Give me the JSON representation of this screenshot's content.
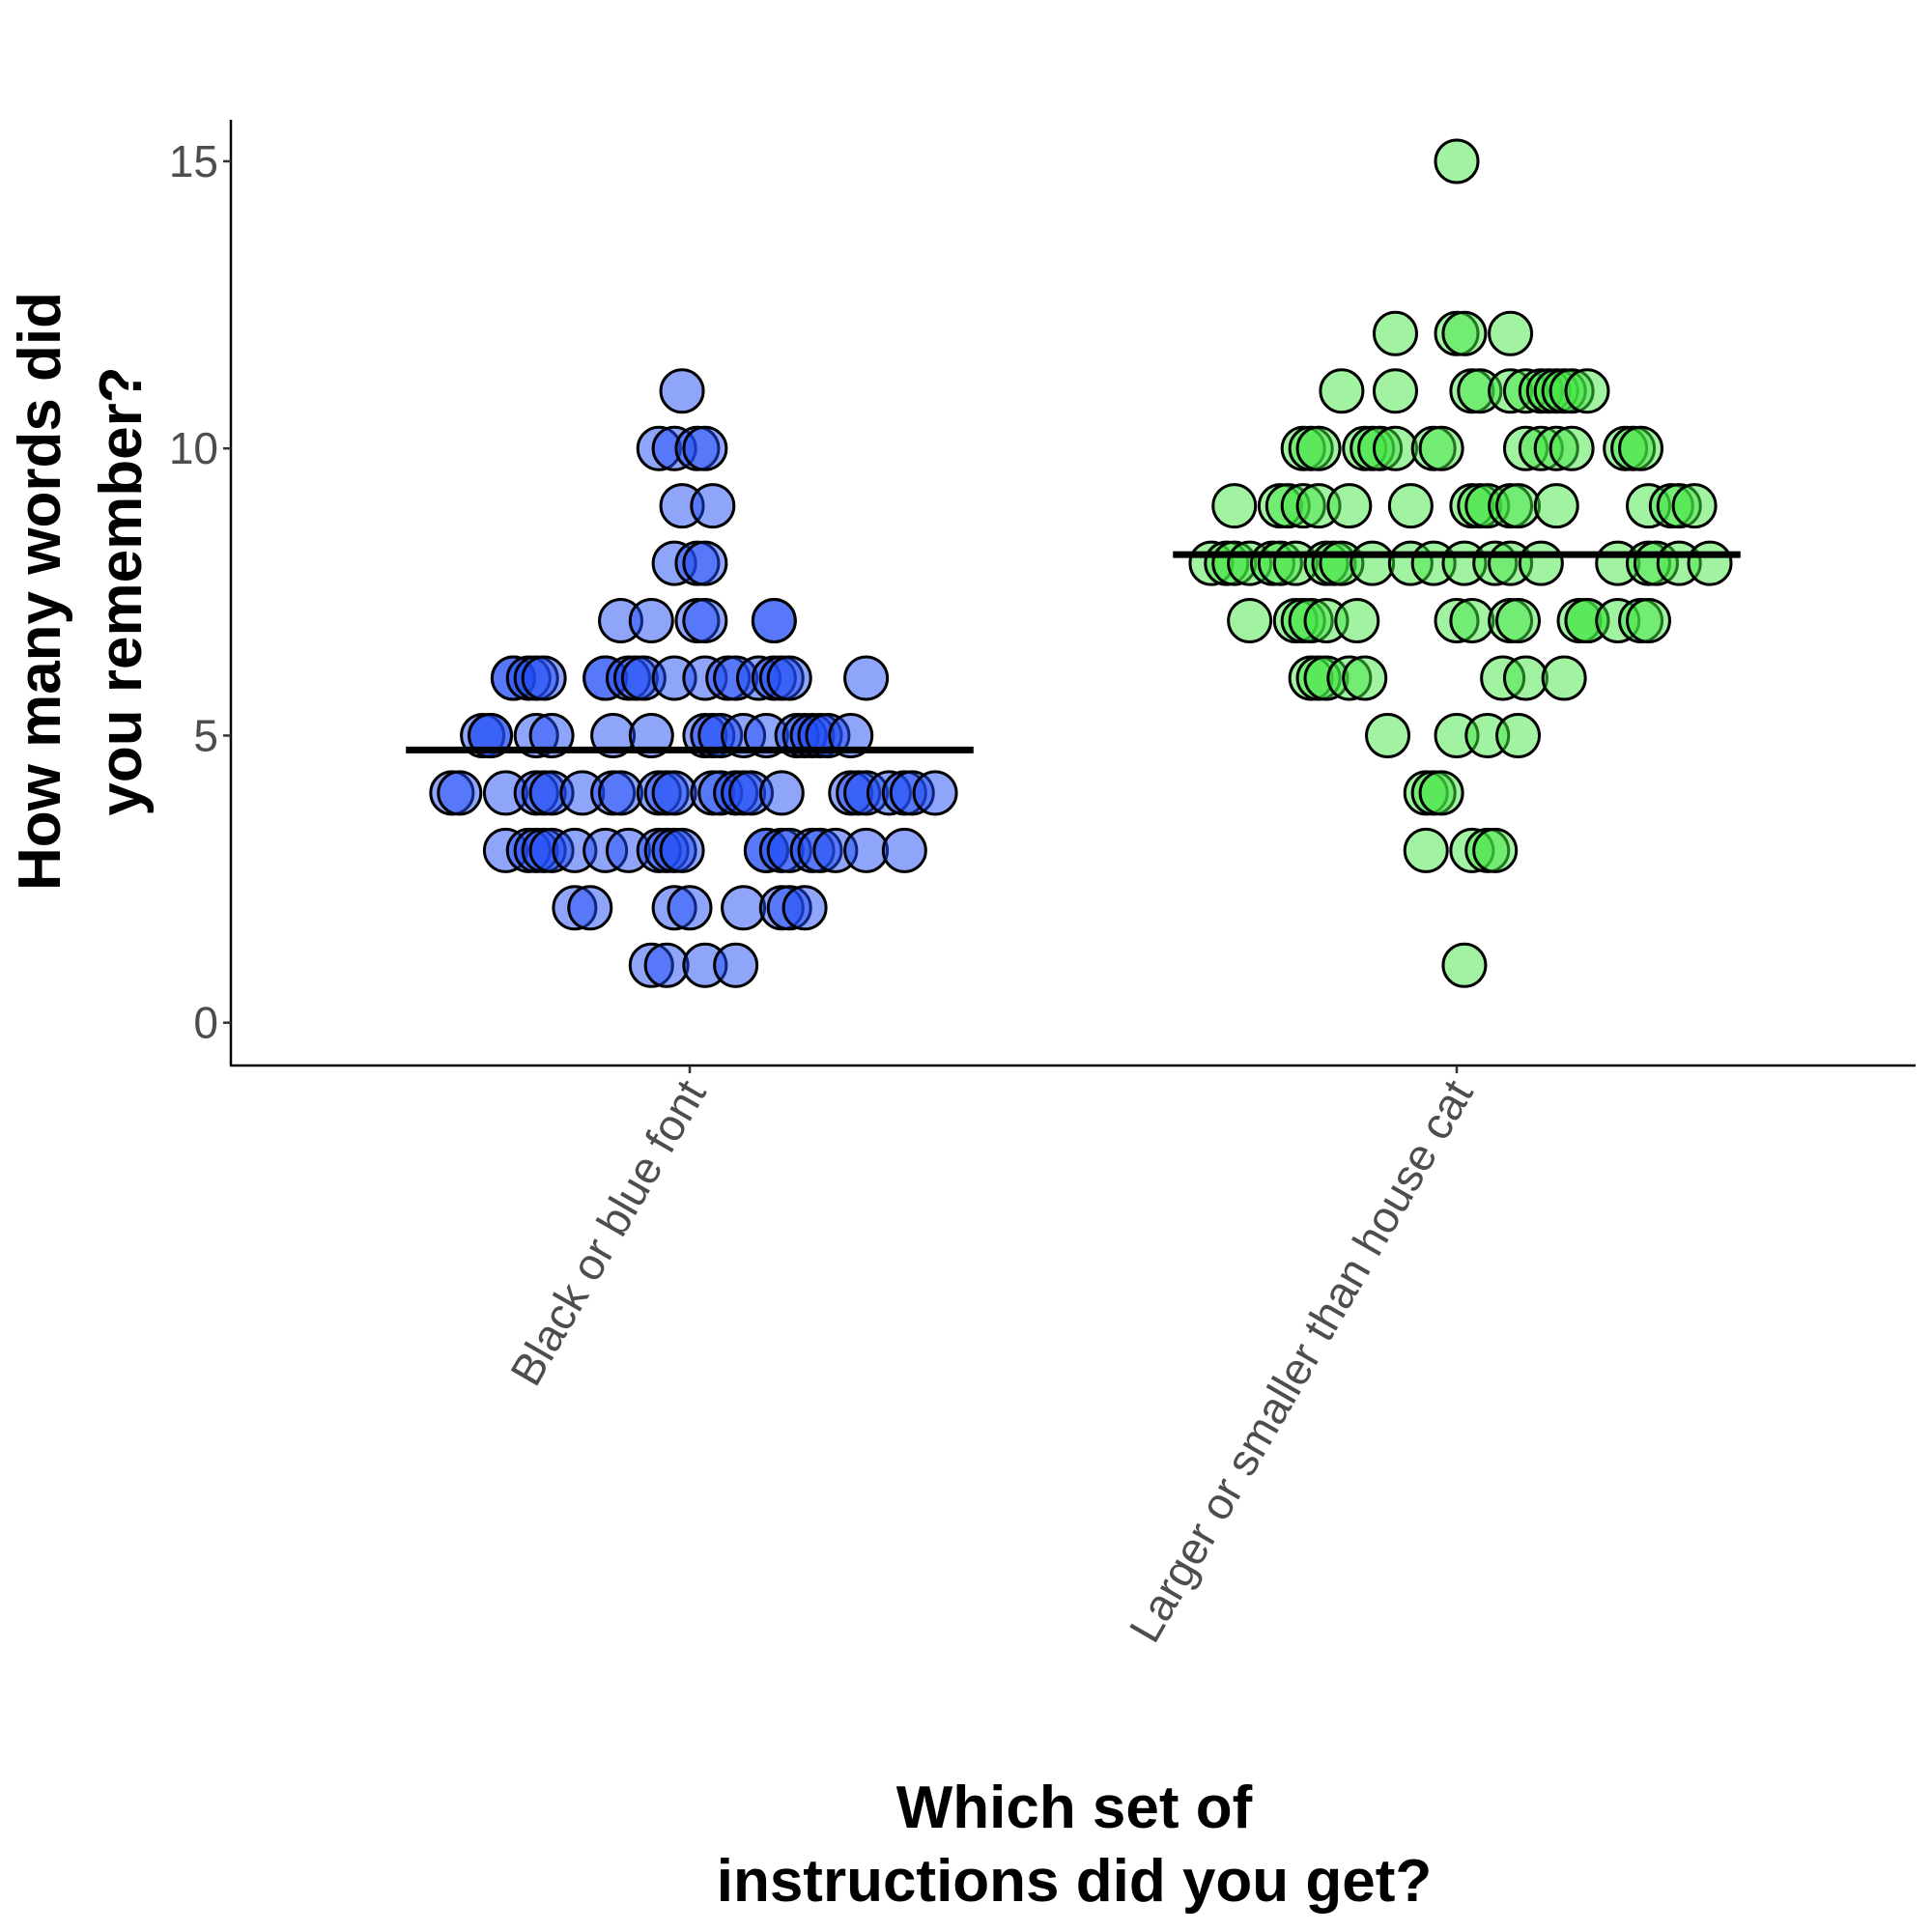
{
  "chart_data": {
    "type": "scatter",
    "subtype": "jittered strip plot with group mean lines",
    "title": "",
    "xlabel_lines": [
      "Which set of",
      "instructions did you get?"
    ],
    "ylabel_lines": [
      "How many words did",
      "you remember?"
    ],
    "ylim": [
      -0.7,
      15.7
    ],
    "yticks": [
      0,
      5,
      10,
      15
    ],
    "ytick_labels": [
      "0",
      "5",
      "10",
      "15"
    ],
    "grid": false,
    "categories": [
      "Black or blue font",
      "Larger or smaller than house cat"
    ],
    "series": [
      {
        "name": "Black or blue font",
        "color": "#1f4cf5",
        "mean": 4.75,
        "points": [
          [
            -0.01,
            11
          ],
          [
            -0.04,
            10
          ],
          [
            -0.02,
            10
          ],
          [
            0.01,
            10
          ],
          [
            0.02,
            10
          ],
          [
            -0.01,
            9
          ],
          [
            0.03,
            9
          ],
          [
            -0.02,
            8
          ],
          [
            0.01,
            8
          ],
          [
            0.02,
            8
          ],
          [
            -0.09,
            7
          ],
          [
            -0.05,
            7
          ],
          [
            0.01,
            7
          ],
          [
            0.02,
            7
          ],
          [
            0.11,
            7
          ],
          [
            0.11,
            7
          ],
          [
            -0.23,
            6
          ],
          [
            -0.23,
            6
          ],
          [
            -0.21,
            6
          ],
          [
            -0.2,
            6
          ],
          [
            -0.19,
            6
          ],
          [
            -0.11,
            6
          ],
          [
            -0.11,
            6
          ],
          [
            -0.08,
            6
          ],
          [
            -0.07,
            6
          ],
          [
            -0.06,
            6
          ],
          [
            -0.02,
            6
          ],
          [
            0.02,
            6
          ],
          [
            0.05,
            6
          ],
          [
            0.06,
            6
          ],
          [
            0.09,
            6
          ],
          [
            0.11,
            6
          ],
          [
            0.12,
            6
          ],
          [
            0.13,
            6
          ],
          [
            0.23,
            6
          ],
          [
            -0.27,
            5
          ],
          [
            -0.26,
            5
          ],
          [
            -0.26,
            5
          ],
          [
            -0.2,
            5
          ],
          [
            -0.18,
            5
          ],
          [
            -0.1,
            5
          ],
          [
            -0.05,
            5
          ],
          [
            0.02,
            5
          ],
          [
            0.03,
            5
          ],
          [
            0.04,
            5
          ],
          [
            0.07,
            5
          ],
          [
            0.1,
            5
          ],
          [
            0.14,
            5
          ],
          [
            0.15,
            5
          ],
          [
            0.16,
            5
          ],
          [
            0.17,
            5
          ],
          [
            0.18,
            5
          ],
          [
            0.21,
            5
          ],
          [
            -0.31,
            4
          ],
          [
            -0.3,
            4
          ],
          [
            -0.24,
            4
          ],
          [
            -0.2,
            4
          ],
          [
            -0.19,
            4
          ],
          [
            -0.18,
            4
          ],
          [
            -0.14,
            4
          ],
          [
            -0.1,
            4
          ],
          [
            -0.09,
            4
          ],
          [
            -0.04,
            4
          ],
          [
            -0.03,
            4
          ],
          [
            -0.02,
            4
          ],
          [
            0.03,
            4
          ],
          [
            0.04,
            4
          ],
          [
            0.06,
            4
          ],
          [
            0.07,
            4
          ],
          [
            0.08,
            4
          ],
          [
            0.12,
            4
          ],
          [
            0.21,
            4
          ],
          [
            0.22,
            4
          ],
          [
            0.23,
            4
          ],
          [
            0.26,
            4
          ],
          [
            0.28,
            4
          ],
          [
            0.29,
            4
          ],
          [
            0.32,
            4
          ],
          [
            -0.24,
            3
          ],
          [
            -0.21,
            3
          ],
          [
            -0.2,
            3
          ],
          [
            -0.19,
            3
          ],
          [
            -0.18,
            3
          ],
          [
            -0.15,
            3
          ],
          [
            -0.11,
            3
          ],
          [
            -0.08,
            3
          ],
          [
            -0.04,
            3
          ],
          [
            -0.03,
            3
          ],
          [
            -0.02,
            3
          ],
          [
            -0.01,
            3
          ],
          [
            0.1,
            3
          ],
          [
            0.1,
            3
          ],
          [
            0.12,
            3
          ],
          [
            0.13,
            3
          ],
          [
            0.16,
            3
          ],
          [
            0.17,
            3
          ],
          [
            0.19,
            3
          ],
          [
            0.23,
            3
          ],
          [
            0.28,
            3
          ],
          [
            -0.15,
            2
          ],
          [
            -0.13,
            2
          ],
          [
            -0.02,
            2
          ],
          [
            0.0,
            2
          ],
          [
            0.07,
            2
          ],
          [
            0.12,
            2
          ],
          [
            0.13,
            2
          ],
          [
            0.15,
            2
          ],
          [
            -0.05,
            1
          ],
          [
            -0.03,
            1
          ],
          [
            0.02,
            1
          ],
          [
            0.06,
            1
          ]
        ]
      },
      {
        "name": "Larger or smaller than house cat",
        "color": "#44e544",
        "mean": 8.15,
        "points": [
          [
            0.0,
            15
          ],
          [
            -0.08,
            12
          ],
          [
            0.0,
            12
          ],
          [
            0.01,
            12
          ],
          [
            0.07,
            12
          ],
          [
            -0.15,
            11
          ],
          [
            -0.08,
            11
          ],
          [
            0.02,
            11
          ],
          [
            0.03,
            11
          ],
          [
            0.07,
            11
          ],
          [
            0.09,
            11
          ],
          [
            0.11,
            11
          ],
          [
            0.12,
            11
          ],
          [
            0.13,
            11
          ],
          [
            0.14,
            11
          ],
          [
            0.15,
            11
          ],
          [
            0.17,
            11
          ],
          [
            -0.2,
            10
          ],
          [
            -0.19,
            10
          ],
          [
            -0.18,
            10
          ],
          [
            -0.12,
            10
          ],
          [
            -0.11,
            10
          ],
          [
            -0.1,
            10
          ],
          [
            -0.08,
            10
          ],
          [
            -0.03,
            10
          ],
          [
            -0.02,
            10
          ],
          [
            0.09,
            10
          ],
          [
            0.11,
            10
          ],
          [
            0.13,
            10
          ],
          [
            0.15,
            10
          ],
          [
            0.22,
            10
          ],
          [
            0.23,
            10
          ],
          [
            0.24,
            10
          ],
          [
            -0.29,
            9
          ],
          [
            -0.23,
            9
          ],
          [
            -0.22,
            9
          ],
          [
            -0.2,
            9
          ],
          [
            -0.18,
            9
          ],
          [
            -0.14,
            9
          ],
          [
            -0.06,
            9
          ],
          [
            0.02,
            9
          ],
          [
            0.03,
            9
          ],
          [
            0.04,
            9
          ],
          [
            0.07,
            9
          ],
          [
            0.08,
            9
          ],
          [
            0.13,
            9
          ],
          [
            0.25,
            9
          ],
          [
            0.28,
            9
          ],
          [
            0.29,
            9
          ],
          [
            0.31,
            9
          ],
          [
            -0.32,
            8
          ],
          [
            -0.3,
            8
          ],
          [
            -0.29,
            8
          ],
          [
            -0.27,
            8
          ],
          [
            -0.24,
            8
          ],
          [
            -0.23,
            8
          ],
          [
            -0.21,
            8
          ],
          [
            -0.17,
            8
          ],
          [
            -0.16,
            8
          ],
          [
            -0.15,
            8
          ],
          [
            -0.11,
            8
          ],
          [
            -0.06,
            8
          ],
          [
            -0.03,
            8
          ],
          [
            0.01,
            8
          ],
          [
            0.05,
            8
          ],
          [
            0.07,
            8
          ],
          [
            0.11,
            8
          ],
          [
            0.21,
            8
          ],
          [
            0.25,
            8
          ],
          [
            0.26,
            8
          ],
          [
            0.29,
            8
          ],
          [
            0.33,
            8
          ],
          [
            -0.27,
            7
          ],
          [
            -0.21,
            7
          ],
          [
            -0.2,
            7
          ],
          [
            -0.19,
            7
          ],
          [
            -0.17,
            7
          ],
          [
            -0.13,
            7
          ],
          [
            0.0,
            7
          ],
          [
            0.02,
            7
          ],
          [
            0.07,
            7
          ],
          [
            0.08,
            7
          ],
          [
            0.16,
            7
          ],
          [
            0.17,
            7
          ],
          [
            0.17,
            7
          ],
          [
            0.21,
            7
          ],
          [
            0.24,
            7
          ],
          [
            0.25,
            7
          ],
          [
            -0.19,
            6
          ],
          [
            -0.18,
            6
          ],
          [
            -0.17,
            6
          ],
          [
            -0.14,
            6
          ],
          [
            -0.12,
            6
          ],
          [
            0.06,
            6
          ],
          [
            0.09,
            6
          ],
          [
            0.14,
            6
          ],
          [
            -0.09,
            5
          ],
          [
            0.0,
            5
          ],
          [
            0.04,
            5
          ],
          [
            0.08,
            5
          ],
          [
            -0.04,
            4
          ],
          [
            -0.03,
            4
          ],
          [
            -0.02,
            4
          ],
          [
            -0.04,
            3
          ],
          [
            0.02,
            3
          ],
          [
            0.04,
            3
          ],
          [
            0.05,
            3
          ],
          [
            0.01,
            1
          ]
        ]
      }
    ]
  }
}
